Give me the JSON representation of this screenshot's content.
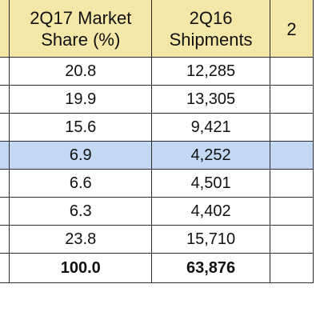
{
  "table": {
    "headers": [
      {
        "line1": "",
        "line2": ""
      },
      {
        "line1": "2Q17 Market",
        "line2": "Share (%)"
      },
      {
        "line1": "2Q16",
        "line2": "Shipments"
      },
      {
        "line1": "2",
        "line2": ""
      }
    ],
    "rows": [
      {
        "share": "20.8",
        "shipments": "12,285",
        "highlighted": false,
        "bold": false
      },
      {
        "share": "19.9",
        "shipments": "13,305",
        "highlighted": false,
        "bold": false
      },
      {
        "share": "15.6",
        "shipments": "9,421",
        "highlighted": false,
        "bold": false
      },
      {
        "share": "6.9",
        "shipments": "4,252",
        "highlighted": true,
        "bold": false
      },
      {
        "share": "6.6",
        "shipments": "4,501",
        "highlighted": false,
        "bold": false
      },
      {
        "share": "6.3",
        "shipments": "4,402",
        "highlighted": false,
        "bold": false
      },
      {
        "share": "23.8",
        "shipments": "15,710",
        "highlighted": false,
        "bold": false
      },
      {
        "share": "100.0",
        "shipments": "63,876",
        "highlighted": false,
        "bold": true
      }
    ]
  },
  "colors": {
    "header_bg": "#f4e8a8",
    "highlight_bg": "#c2d8f3",
    "border": "#2b2b2b"
  }
}
